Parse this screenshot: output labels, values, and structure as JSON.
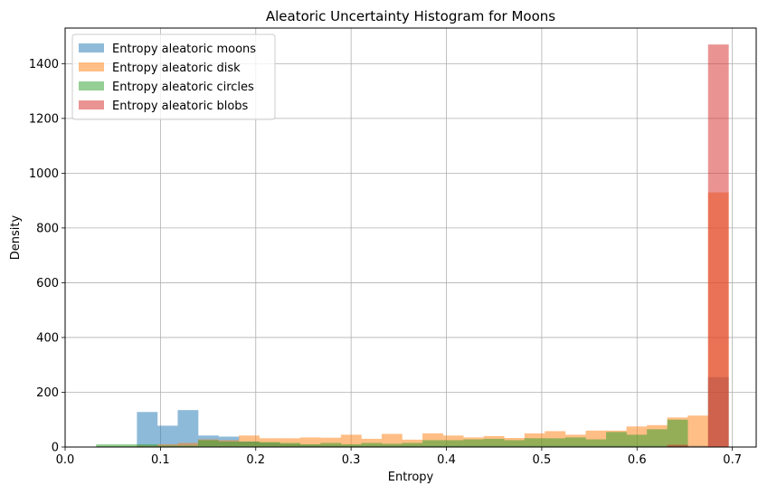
{
  "chart_data": {
    "type": "bar",
    "title": "Aleatoric Uncertainty Histogram for Moons",
    "xlabel": "Entropy",
    "ylabel": "Density",
    "xlim": [
      0.0,
      0.725
    ],
    "ylim": [
      0,
      1530
    ],
    "xticks": [
      "0.0",
      "0.1",
      "0.2",
      "0.3",
      "0.4",
      "0.5",
      "0.6",
      "0.7"
    ],
    "xtick_values": [
      0.0,
      0.1,
      0.2,
      0.3,
      0.4,
      0.5,
      0.6,
      0.7
    ],
    "yticks": [
      "0",
      "200",
      "400",
      "600",
      "800",
      "1000",
      "1200",
      "1400"
    ],
    "ytick_values": [
      0,
      200,
      400,
      600,
      800,
      1000,
      1200,
      1400
    ],
    "grid": true,
    "legend_position": "top-left",
    "series": [
      {
        "name": "Entropy aleatoric moons",
        "color": "#1f77b4",
        "bin_start": 0.0325,
        "bin_width": 0.0214,
        "values": [
          2,
          2,
          128,
          78,
          135,
          42,
          38,
          20,
          15,
          10,
          8,
          6,
          5,
          5,
          5,
          5,
          5,
          5,
          5,
          5,
          5,
          5,
          5,
          5,
          5,
          5,
          5,
          5,
          5,
          5,
          255
        ]
      },
      {
        "name": "Entropy aleatoric disk",
        "color": "#ff7f0e",
        "bin_start": 0.0325,
        "bin_width": 0.0214,
        "values": [
          2,
          2,
          5,
          10,
          15,
          28,
          25,
          42,
          32,
          32,
          35,
          34,
          45,
          30,
          48,
          27,
          50,
          42,
          35,
          40,
          33,
          50,
          58,
          45,
          60,
          60,
          75,
          80,
          108,
          115,
          930
        ]
      },
      {
        "name": "Entropy aleatoric circles",
        "color": "#2ca02c",
        "bin_start": 0.0325,
        "bin_width": 0.0214,
        "values": [
          10,
          10,
          10,
          5,
          5,
          25,
          20,
          20,
          18,
          15,
          10,
          15,
          10,
          15,
          12,
          15,
          25,
          25,
          28,
          30,
          25,
          32,
          32,
          35,
          28,
          55,
          45,
          65,
          100,
          0,
          0
        ]
      },
      {
        "name": "Entropy aleatoric blobs",
        "color": "#d62728",
        "bin_start": 0.0325,
        "bin_width": 0.0214,
        "values": [
          0,
          0,
          0,
          0,
          0,
          0,
          0,
          0,
          0,
          0,
          0,
          0,
          0,
          0,
          0,
          0,
          0,
          0,
          0,
          0,
          0,
          0,
          0,
          0,
          0,
          0,
          0,
          0,
          8,
          0,
          1470
        ]
      }
    ]
  }
}
